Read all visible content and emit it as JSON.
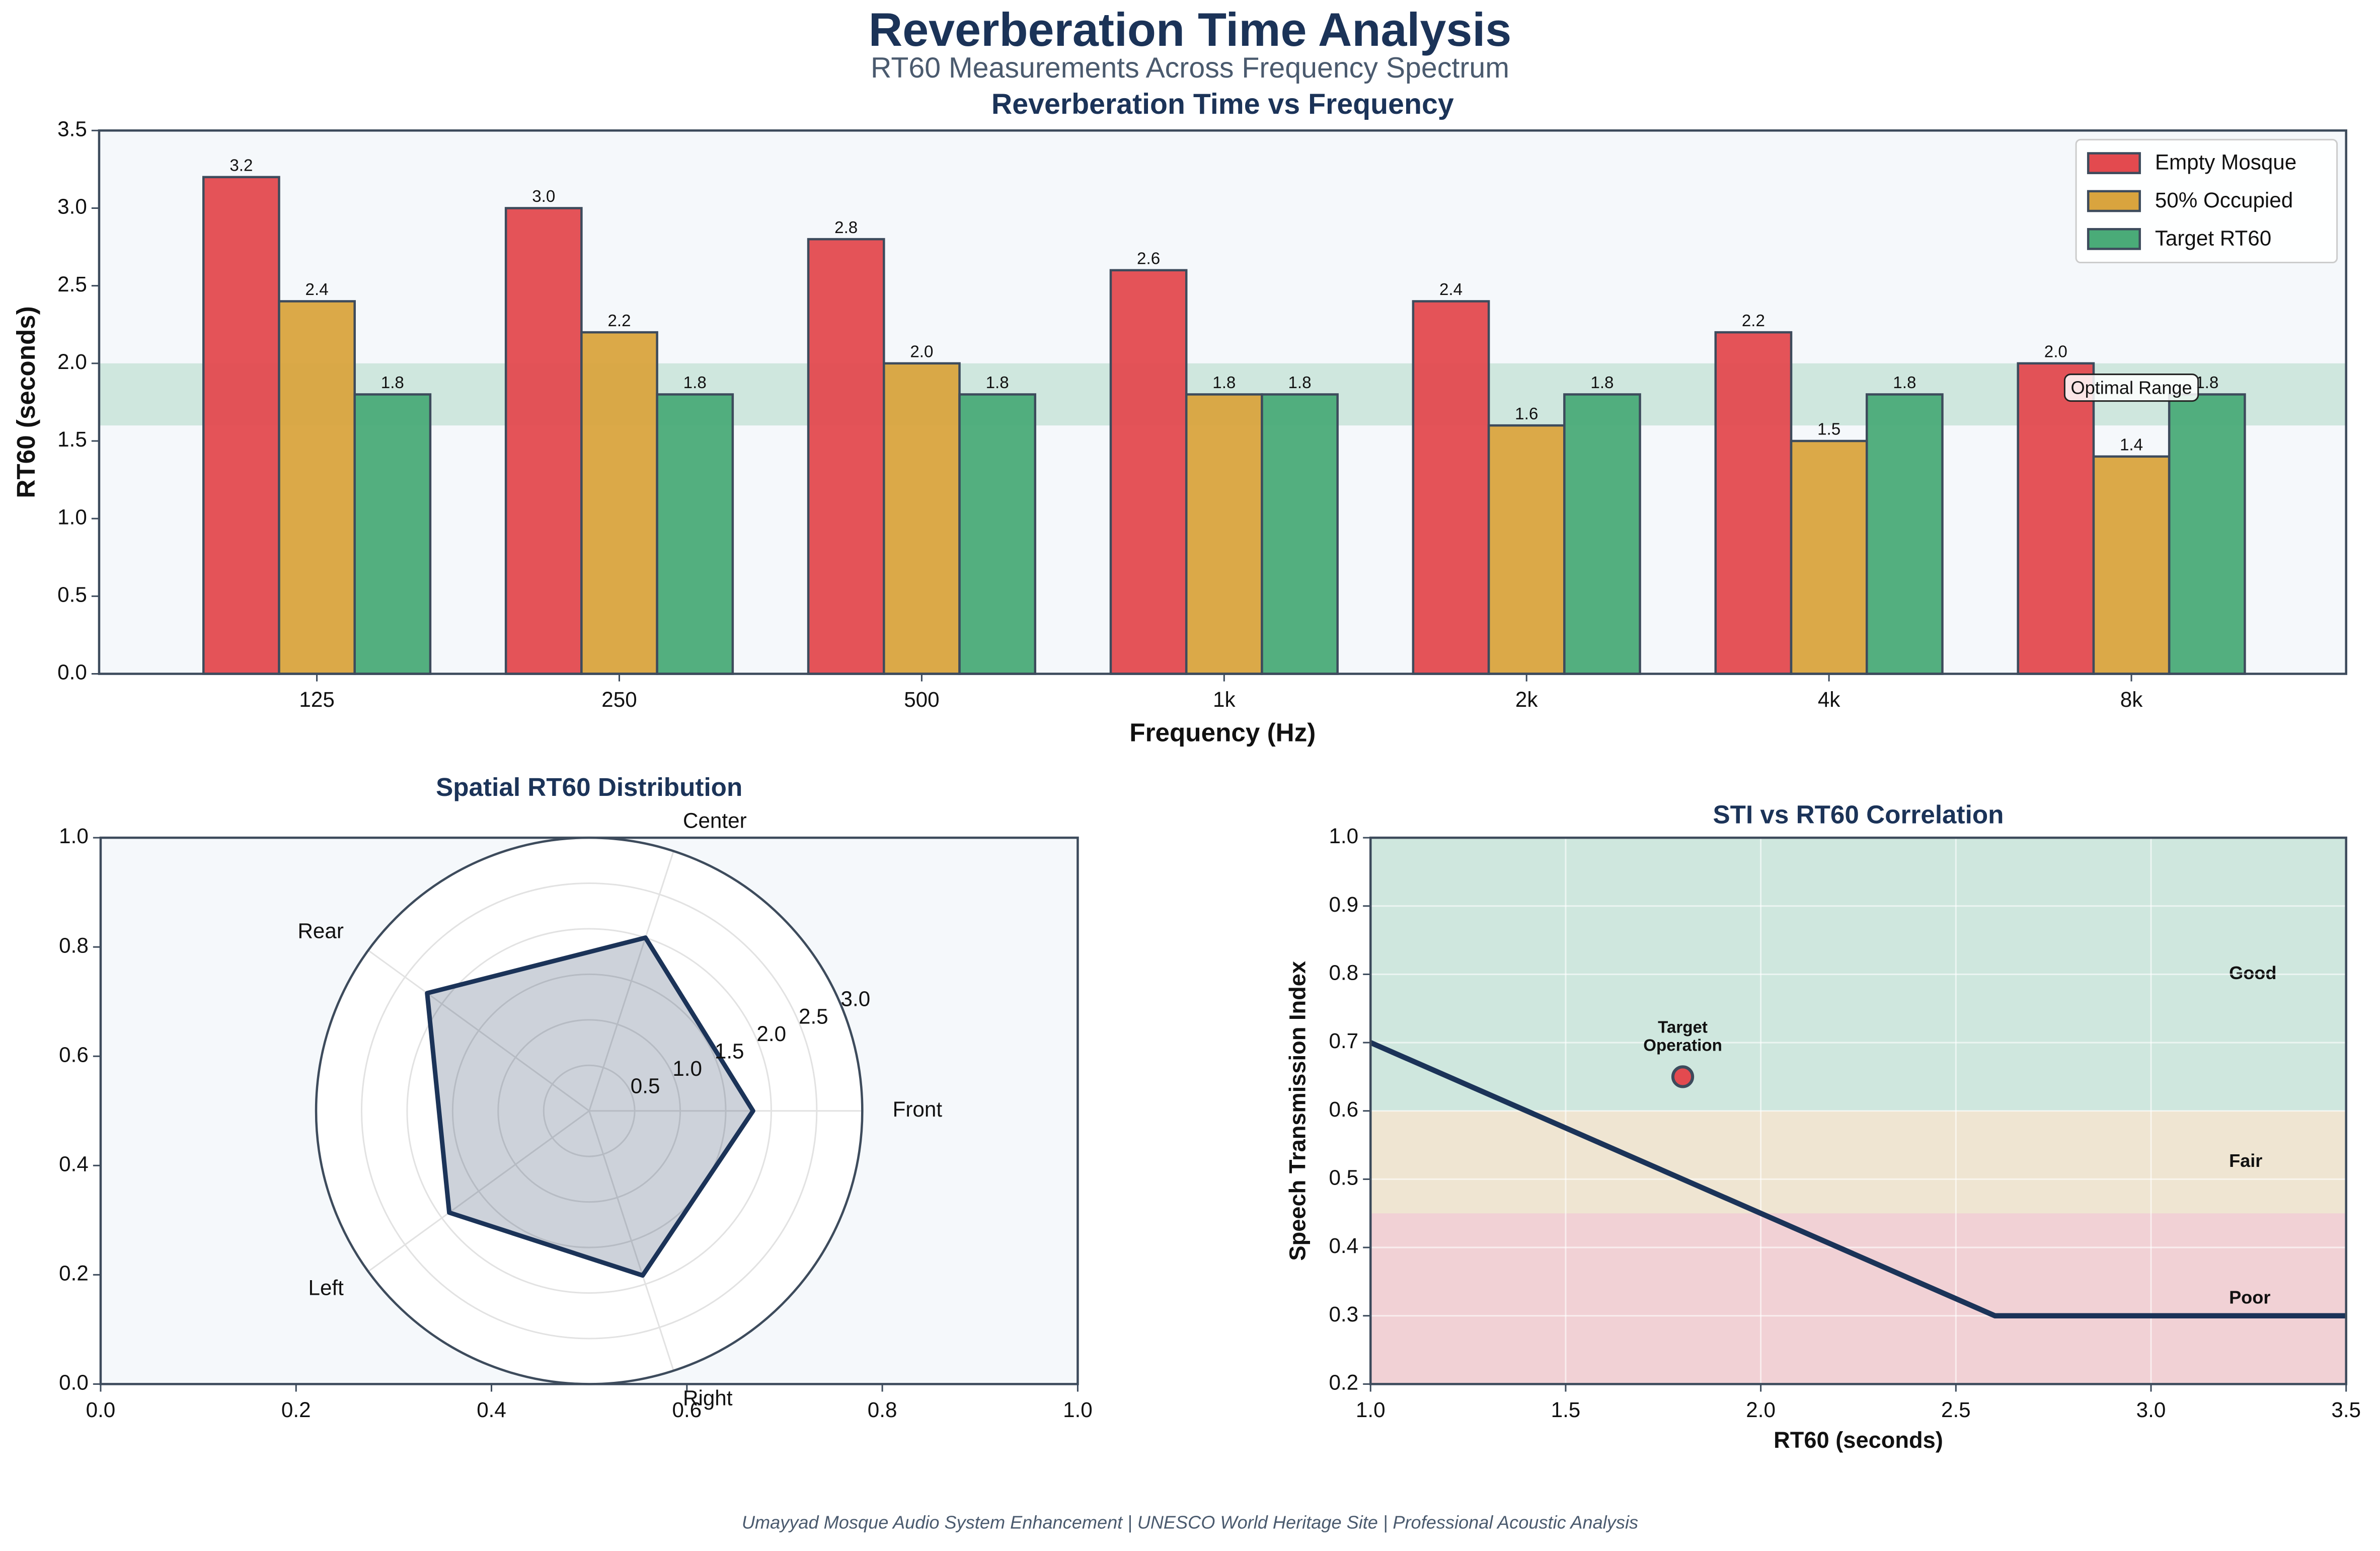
{
  "title": "Reverberation Time Analysis",
  "subtitle": "RT60 Measurements Across Frequency Spectrum",
  "footer": "Umayyad Mosque Audio System Enhancement | UNESCO World Heritage Site | Professional Acoustic Analysis",
  "chart_data": [
    {
      "type": "bar",
      "title": "Reverberation Time vs Frequency",
      "xlabel": "Frequency (Hz)",
      "ylabel": "RT60 (seconds)",
      "categories": [
        "125",
        "250",
        "500",
        "1k",
        "2k",
        "4k",
        "8k"
      ],
      "series": [
        {
          "name": "Empty Mosque",
          "color": "#e34a4f",
          "values": [
            3.2,
            3.0,
            2.8,
            2.6,
            2.4,
            2.2,
            2.0
          ],
          "value_labels": [
            "3.2",
            "3.0",
            "2.8",
            "2.6",
            "2.4",
            "2.2",
            "2.0"
          ]
        },
        {
          "name": "50% Occupied",
          "color": "#d9a43e",
          "values": [
            2.4,
            2.2,
            2.0,
            1.8,
            1.6,
            1.5,
            1.4
          ],
          "value_labels": [
            "2.4",
            "2.2",
            "2.0",
            "1.8",
            "1.6",
            "1.5",
            "1.4"
          ]
        },
        {
          "name": "Target RT60",
          "color": "#4aab78",
          "values": [
            1.8,
            1.8,
            1.8,
            1.8,
            1.8,
            1.8,
            1.8
          ]
        }
      ],
      "ylim": [
        0,
        3.5
      ],
      "yticks": [
        {
          "value": 0,
          "label": "0.0"
        },
        0.5,
        {
          "value": 1,
          "label": "1.0"
        },
        1.5,
        {
          "value": 2,
          "label": "2.0"
        },
        2.5,
        {
          "value": 3,
          "label": "3.0"
        },
        3.5
      ],
      "legend": "upper right",
      "band": [
        1.6,
        2.0
      ],
      "band_color": "#4aab78",
      "band_label": "Optimal Range"
    },
    {
      "type": "radar",
      "title": "Spatial RT60 Distribution",
      "categories": [
        "Front",
        "Center",
        "Rear",
        "Left",
        "Right"
      ],
      "values": [
        1.8,
        2.0,
        2.2,
        1.9,
        1.9
      ],
      "color": "#1b3358",
      "rlim": [
        0,
        3
      ],
      "rticks": [
        0.5,
        {
          "value": 1,
          "label": "1.0"
        },
        1.5,
        {
          "value": 2,
          "label": "2.0"
        },
        2.5,
        {
          "value": 3,
          "label": "3.0"
        }
      ],
      "xlim": [
        0,
        1
      ],
      "xticks": [
        {
          "value": 0,
          "label": "0.0"
        },
        0.2,
        0.4,
        0.6,
        0.8,
        {
          "value": 1,
          "label": "1.0"
        }
      ],
      "ylim": [
        0,
        1
      ],
      "yticks": [
        {
          "value": 0,
          "label": "0.0"
        },
        0.2,
        0.4,
        0.6,
        0.8,
        {
          "value": 1,
          "label": "1.0"
        }
      ]
    },
    {
      "type": "line",
      "title": "STI vs RT60 Correlation",
      "xlabel": "RT60 (seconds)",
      "ylabel": "Speech Transmission Index",
      "x": [
        1.0,
        2.6,
        3.5
      ],
      "values": [
        0.7,
        0.3,
        0.3
      ],
      "color": "#1b3358",
      "points": [
        {
          "x": 1.8,
          "y": 0.65,
          "label": "Target\nOperation",
          "color": "#e34a4f"
        }
      ],
      "zones": [
        {
          "label": "Good",
          "range": [
            0.6,
            1.0
          ],
          "color": "#4aab78"
        },
        {
          "label": "Fair",
          "range": [
            0.45,
            0.6
          ],
          "color": "#d9a43e"
        },
        {
          "label": "Poor",
          "range": [
            0.2,
            0.45
          ],
          "color": "#e34a4f"
        }
      ],
      "xlim": [
        1.0,
        3.5
      ],
      "xticks": [
        {
          "value": 1,
          "label": "1.0"
        },
        1.5,
        {
          "value": 2,
          "label": "2.0"
        },
        2.5,
        {
          "value": 3,
          "label": "3.0"
        },
        3.5
      ],
      "ylim": [
        0.2,
        1.0
      ],
      "yticks": [
        0.2,
        0.3,
        0.4,
        0.5,
        0.6,
        0.7,
        0.8,
        0.9,
        {
          "value": 1,
          "label": "1.0"
        }
      ],
      "grid": true
    }
  ]
}
